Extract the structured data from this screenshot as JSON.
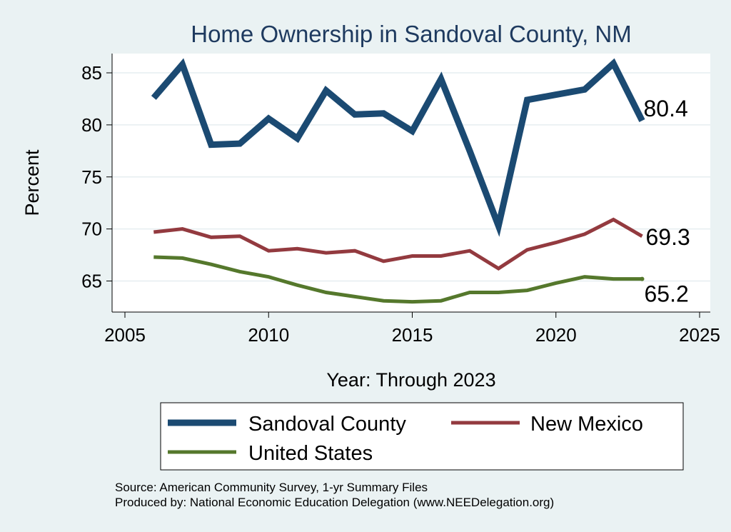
{
  "chart_data": {
    "type": "line",
    "title": "Home Ownership in Sandoval County, NM",
    "xlabel": "Year: Through 2023",
    "ylabel": "Percent",
    "xlim": [
      2005,
      2025
    ],
    "ylim": [
      62.5,
      87.5
    ],
    "xticks": [
      2005,
      2010,
      2015,
      2020,
      2025
    ],
    "yticks": [
      65,
      70,
      75,
      80,
      85
    ],
    "grid": true,
    "legend_position": "bottom",
    "x": [
      2006,
      2007,
      2008,
      2009,
      2010,
      2011,
      2012,
      2013,
      2014,
      2015,
      2016,
      2017,
      2018,
      2019,
      2020,
      2021,
      2022,
      2023
    ],
    "series": [
      {
        "name": "Sandoval County",
        "color": "#1b4a72",
        "values": [
          82.6,
          85.8,
          78.1,
          78.2,
          80.6,
          78.7,
          83.3,
          81.0,
          81.1,
          79.4,
          84.4,
          77.5,
          70.3,
          82.4,
          82.9,
          83.4,
          85.9,
          80.4
        ],
        "end_label": "80.4"
      },
      {
        "name": "New Mexico",
        "color": "#933a3f",
        "values": [
          69.7,
          70.0,
          69.2,
          69.3,
          67.9,
          68.1,
          67.7,
          67.9,
          66.9,
          67.4,
          67.4,
          67.9,
          66.2,
          68.0,
          68.7,
          69.5,
          70.9,
          69.3
        ],
        "end_label": "69.3"
      },
      {
        "name": "United States",
        "color": "#55782c",
        "values": [
          67.3,
          67.2,
          66.6,
          65.9,
          65.4,
          64.6,
          63.9,
          63.5,
          63.1,
          63.0,
          63.1,
          63.9,
          63.9,
          64.1,
          64.8,
          65.4,
          65.2,
          65.2
        ],
        "end_label": "65.2"
      }
    ]
  },
  "notes": {
    "source": "Source: American Community Survey, 1-yr Summary Files",
    "produced": "Produced by: National Economic Education Delegation (www.NEEDelegation.org)"
  }
}
